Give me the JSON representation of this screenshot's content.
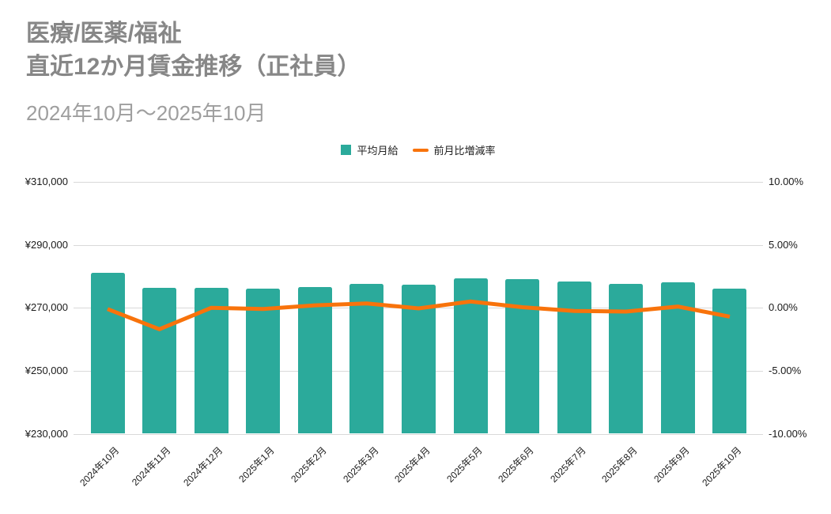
{
  "header": {
    "title_line1": "医療/医薬/福祉",
    "title_line2": "直近12か月賃金推移（正社員）",
    "period": "2024年10月～2025年10月"
  },
  "legend": {
    "bar_label": "平均月給",
    "line_label": "前月比増減率"
  },
  "colors": {
    "bar": "#2BAA9B",
    "line": "#F8730B",
    "title": "#878787",
    "period": "#9E9E9E",
    "grid": "#D9D9D9",
    "axis_text": "#1A1A1A",
    "background": "#FFFFFF"
  },
  "chart_data": {
    "type": "bar",
    "combo": "bar+line",
    "title": "医療/医薬/福祉 直近12か月賃金推移（正社員）",
    "subtitle": "2024年10月～2025年10月",
    "categories": [
      "2024年10月",
      "2024年11月",
      "2024年12月",
      "2025年1月",
      "2025年2月",
      "2025年3月",
      "2025年4月",
      "2025年5月",
      "2025年6月",
      "2025年7月",
      "2025年8月",
      "2025年9月",
      "2025年10月"
    ],
    "series": [
      {
        "name": "平均月給",
        "type": "bar",
        "axis": "left",
        "unit": "JPY",
        "values": [
          281100,
          276400,
          276400,
          276100,
          276700,
          277600,
          277400,
          279400,
          279100,
          278300,
          277700,
          278000,
          276000
        ]
      },
      {
        "name": "前月比増減率",
        "type": "line",
        "axis": "right",
        "unit": "%",
        "values": [
          -0.1,
          -1.7,
          0.0,
          -0.1,
          0.2,
          0.35,
          -0.05,
          0.5,
          0.05,
          -0.25,
          -0.3,
          0.1,
          -0.7
        ]
      }
    ],
    "left_axis": {
      "min": 230000,
      "max": 310000,
      "ticks": [
        "¥310,000",
        "¥290,000",
        "¥270,000",
        "¥250,000",
        "¥230,000"
      ]
    },
    "right_axis": {
      "min": -10,
      "max": 10,
      "ticks": [
        "10.00%",
        "5.00%",
        "0.00%",
        "-5.00%",
        "-10.00%"
      ]
    },
    "grid": true,
    "legend_position": "top-center"
  }
}
